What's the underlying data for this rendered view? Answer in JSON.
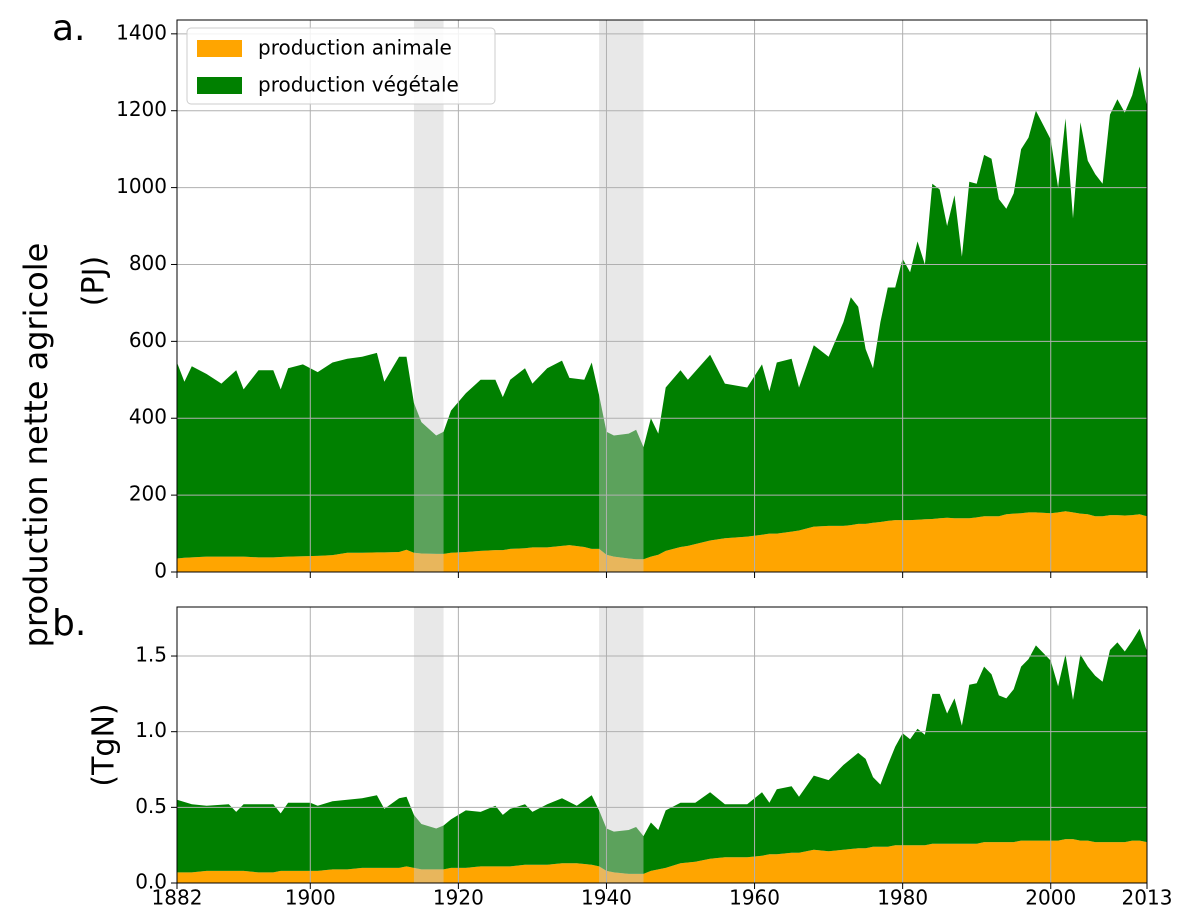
{
  "figure_ylabel": "production nette agricole",
  "chart_data": [
    {
      "type": "stacked_area",
      "panel_label": "a.",
      "ylabel": "(PJ)",
      "xlim": [
        1882,
        2013
      ],
      "xticks": [
        1882,
        1900,
        1920,
        1940,
        1960,
        1980,
        2000,
        2013
      ],
      "ylim": [
        0,
        1436
      ],
      "yticks": [
        0,
        200,
        400,
        600,
        800,
        1000,
        1200,
        1400
      ],
      "grid": true,
      "legend": "upper left",
      "shaded_periods": [
        [
          1914,
          1918
        ],
        [
          1939,
          1945
        ]
      ],
      "x": [
        1882,
        1883,
        1884,
        1886,
        1888,
        1890,
        1891,
        1893,
        1895,
        1896,
        1897,
        1899,
        1901,
        1903,
        1905,
        1907,
        1909,
        1910,
        1912,
        1913,
        1914,
        1915,
        1917,
        1918,
        1919,
        1921,
        1923,
        1925,
        1926,
        1927,
        1929,
        1930,
        1932,
        1934,
        1935,
        1937,
        1938,
        1939,
        1940,
        1941,
        1943,
        1944,
        1945,
        1946,
        1947,
        1948,
        1950,
        1951,
        1954,
        1956,
        1959,
        1961,
        1962,
        1963,
        1965,
        1966,
        1968,
        1970,
        1972,
        1973,
        1974,
        1975,
        1976,
        1977,
        1978,
        1979,
        1980,
        1981,
        1982,
        1983,
        1984,
        1985,
        1986,
        1987,
        1988,
        1989,
        1990,
        1991,
        1992,
        1993,
        1994,
        1995,
        1996,
        1997,
        1998,
        2000,
        2001,
        2002,
        2003,
        2004,
        2005,
        2006,
        2007,
        2008,
        2009,
        2010,
        2011,
        2012,
        2013
      ],
      "series": [
        {
          "name": "production animale",
          "color": "#ffa500",
          "values": [
            35,
            37,
            38,
            40,
            40,
            40,
            40,
            38,
            38,
            39,
            40,
            41,
            42,
            44,
            50,
            50,
            51,
            51,
            52,
            58,
            50,
            48,
            47,
            47,
            50,
            52,
            55,
            57,
            57,
            60,
            62,
            64,
            64,
            68,
            70,
            65,
            60,
            60,
            45,
            40,
            35,
            33,
            33,
            40,
            45,
            55,
            65,
            68,
            82,
            88,
            92,
            97,
            100,
            100,
            105,
            108,
            118,
            120,
            120,
            122,
            125,
            125,
            128,
            130,
            133,
            135,
            135,
            135,
            136,
            137,
            138,
            140,
            141,
            140,
            140,
            140,
            142,
            145,
            145,
            145,
            150,
            152,
            153,
            155,
            155,
            153,
            155,
            158,
            155,
            152,
            150,
            145,
            145,
            148,
            148,
            147,
            148,
            150,
            145
          ]
        },
        {
          "name": "production végétale",
          "color": "#008000",
          "values": [
            510,
            458,
            497,
            475,
            450,
            485,
            435,
            487,
            487,
            436,
            490,
            499,
            478,
            501,
            505,
            510,
            519,
            444,
            508,
            502,
            390,
            342,
            308,
            318,
            370,
            413,
            445,
            443,
            398,
            440,
            468,
            426,
            466,
            482,
            435,
            435,
            485,
            400,
            320,
            315,
            325,
            337,
            292,
            360,
            315,
            425,
            460,
            432,
            483,
            402,
            388,
            443,
            370,
            445,
            450,
            372,
            472,
            440,
            530,
            593,
            565,
            455,
            402,
            520,
            607,
            605,
            680,
            645,
            724,
            663,
            872,
            855,
            759,
            840,
            680,
            875,
            868,
            940,
            930,
            825,
            795,
            833,
            947,
            975,
            1045,
            972,
            845,
            1022,
            765,
            1018,
            920,
            890,
            865,
            1042,
            1082,
            1048,
            1092,
            1165,
            1065
          ]
        }
      ]
    },
    {
      "type": "stacked_area",
      "panel_label": "b.",
      "ylabel": "(TgN)",
      "xlim": [
        1882,
        2013
      ],
      "xticks": [
        1882,
        1900,
        1920,
        1940,
        1960,
        1980,
        2000,
        2013
      ],
      "ylim": [
        0,
        1.824
      ],
      "yticks": [
        {
          "value": 0,
          "label": "0.0"
        },
        0.5,
        {
          "value": 1,
          "label": "1.0"
        },
        1.5
      ],
      "grid": true,
      "shaded_periods": [
        [
          1914,
          1918
        ],
        [
          1939,
          1945
        ]
      ],
      "x": [
        1882,
        1884,
        1886,
        1889,
        1890,
        1891,
        1893,
        1895,
        1896,
        1897,
        1900,
        1901,
        1903,
        1905,
        1907,
        1909,
        1910,
        1912,
        1913,
        1914,
        1915,
        1917,
        1918,
        1919,
        1921,
        1923,
        1925,
        1926,
        1927,
        1929,
        1930,
        1932,
        1934,
        1936,
        1938,
        1939,
        1940,
        1941,
        1943,
        1944,
        1945,
        1946,
        1947,
        1948,
        1950,
        1952,
        1954,
        1956,
        1959,
        1961,
        1962,
        1963,
        1965,
        1966,
        1968,
        1970,
        1972,
        1974,
        1975,
        1976,
        1977,
        1978,
        1979,
        1980,
        1981,
        1982,
        1983,
        1984,
        1985,
        1986,
        1987,
        1988,
        1989,
        1990,
        1991,
        1992,
        1993,
        1994,
        1995,
        1996,
        1997,
        1998,
        2000,
        2001,
        2002,
        2003,
        2004,
        2005,
        2006,
        2007,
        2008,
        2009,
        2010,
        2011,
        2012,
        2013
      ],
      "series": [
        {
          "name": "production animale",
          "color": "#ffa500",
          "values": [
            0.07,
            0.07,
            0.08,
            0.08,
            0.08,
            0.08,
            0.07,
            0.07,
            0.08,
            0.08,
            0.08,
            0.08,
            0.09,
            0.09,
            0.1,
            0.1,
            0.1,
            0.1,
            0.11,
            0.1,
            0.09,
            0.09,
            0.09,
            0.1,
            0.1,
            0.11,
            0.11,
            0.11,
            0.11,
            0.12,
            0.12,
            0.12,
            0.13,
            0.13,
            0.12,
            0.11,
            0.08,
            0.07,
            0.06,
            0.06,
            0.06,
            0.08,
            0.09,
            0.1,
            0.13,
            0.14,
            0.16,
            0.17,
            0.17,
            0.18,
            0.19,
            0.19,
            0.2,
            0.2,
            0.22,
            0.21,
            0.22,
            0.23,
            0.23,
            0.24,
            0.24,
            0.24,
            0.25,
            0.25,
            0.25,
            0.25,
            0.25,
            0.26,
            0.26,
            0.26,
            0.26,
            0.26,
            0.26,
            0.26,
            0.27,
            0.27,
            0.27,
            0.27,
            0.27,
            0.28,
            0.28,
            0.28,
            0.28,
            0.28,
            0.29,
            0.29,
            0.28,
            0.28,
            0.27,
            0.27,
            0.27,
            0.27,
            0.27,
            0.28,
            0.28,
            0.27
          ]
        },
        {
          "name": "production végétale",
          "color": "#008000",
          "values": [
            0.48,
            0.45,
            0.43,
            0.44,
            0.39,
            0.44,
            0.45,
            0.45,
            0.38,
            0.45,
            0.45,
            0.43,
            0.45,
            0.46,
            0.46,
            0.48,
            0.39,
            0.46,
            0.46,
            0.35,
            0.3,
            0.27,
            0.29,
            0.32,
            0.38,
            0.36,
            0.4,
            0.34,
            0.38,
            0.4,
            0.35,
            0.4,
            0.43,
            0.38,
            0.46,
            0.37,
            0.28,
            0.27,
            0.29,
            0.31,
            0.25,
            0.32,
            0.26,
            0.38,
            0.4,
            0.39,
            0.44,
            0.35,
            0.35,
            0.42,
            0.34,
            0.43,
            0.44,
            0.37,
            0.49,
            0.47,
            0.56,
            0.63,
            0.59,
            0.46,
            0.41,
            0.54,
            0.65,
            0.74,
            0.7,
            0.77,
            0.73,
            0.99,
            0.99,
            0.86,
            0.96,
            0.78,
            1.05,
            1.06,
            1.16,
            1.11,
            0.97,
            0.95,
            1.01,
            1.15,
            1.2,
            1.29,
            1.19,
            1.02,
            1.22,
            0.92,
            1.23,
            1.15,
            1.1,
            1.06,
            1.27,
            1.32,
            1.26,
            1.32,
            1.4,
            1.26
          ]
        }
      ]
    }
  ]
}
